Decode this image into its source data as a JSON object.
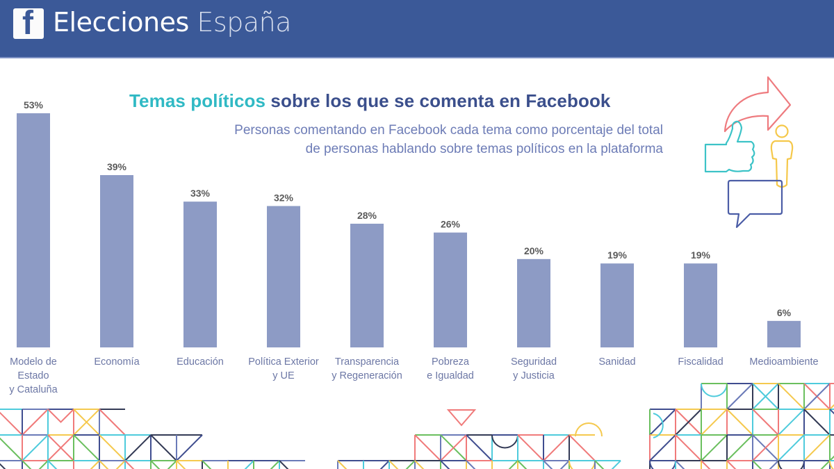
{
  "header": {
    "logo_letter": "f",
    "title_bold": "Elecciones",
    "title_light": "España",
    "background_color": "#3b5998"
  },
  "chart_data": {
    "type": "bar",
    "title_accent": "Temas políticos",
    "title_rest": " sobre los que se comenta en Facebook",
    "subtitle_lines": [
      "Personas comentando en Facebook cada tema como porcentaje del total",
      "de personas hablando sobre temas políticos en la plataforma"
    ],
    "categories": [
      [
        "Modelo de",
        "Estado",
        "y Cataluña"
      ],
      [
        "Economía"
      ],
      [
        "Educación"
      ],
      [
        "Política Exterior",
        "y UE"
      ],
      [
        "Transparencia",
        "y Regeneración"
      ],
      [
        "Pobreza",
        "e Igualdad"
      ],
      [
        "Seguridad",
        "y Justicia"
      ],
      [
        "Sanidad"
      ],
      [
        "Fiscalidad"
      ],
      [
        "Medioambiente"
      ]
    ],
    "values": [
      53,
      39,
      33,
      32,
      28,
      26,
      20,
      19,
      19,
      6
    ],
    "data_labels": [
      "53%",
      "39%",
      "33%",
      "32%",
      "28%",
      "26%",
      "20%",
      "19%",
      "19%",
      "6%"
    ],
    "unit": "%",
    "xlabel": "",
    "ylabel": "",
    "ylim": [
      0,
      53
    ],
    "grid": false,
    "legend": "none",
    "bar_color": "#8d9bc5",
    "accent_color": "#30b9c4",
    "title_color": "#3b4f8c"
  },
  "decorations": {
    "icons": [
      "share-arrow-icon",
      "thumbs-up-icon",
      "person-icon",
      "speech-bubble-icon"
    ],
    "palette": [
      "#3f4d8f",
      "#f07a7a",
      "#f5c94e",
      "#4ecbdc",
      "#6a7ab8",
      "#333a55",
      "#6abf5e"
    ]
  }
}
